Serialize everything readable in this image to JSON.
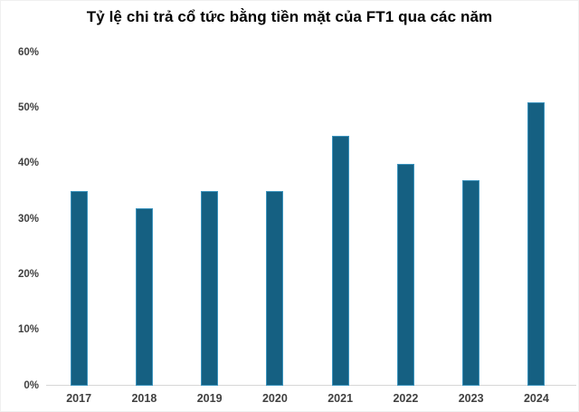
{
  "chart_data": {
    "type": "bar",
    "title": "Tỷ lệ chi trả cổ tức bằng tiền mặt của FT1 qua các năm",
    "categories": [
      "2017",
      "2018",
      "2019",
      "2020",
      "2021",
      "2022",
      "2023",
      "2024"
    ],
    "values": [
      35,
      32,
      35,
      35,
      45,
      40,
      37,
      51
    ],
    "unit": "%",
    "xlabel": "",
    "ylabel": "",
    "ylim": [
      0,
      60
    ],
    "y_ticks": [
      0,
      10,
      20,
      30,
      40,
      50,
      60
    ],
    "y_tick_labels": [
      "0%",
      "10%",
      "20%",
      "30%",
      "40%",
      "50%",
      "60%"
    ],
    "grid": false,
    "legend": false,
    "colors": {
      "bar_fill": "#156082",
      "bar_border": "#3b93bd",
      "axis_line": "#d6d6d6",
      "tick_label": "#404040",
      "title": "#000000",
      "background": "#ffffff"
    }
  }
}
